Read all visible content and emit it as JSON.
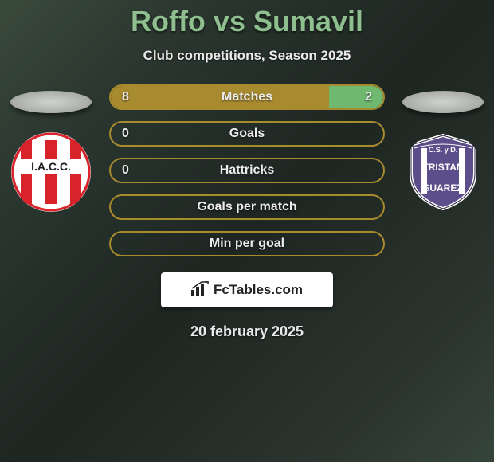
{
  "title": "Roffo vs Sumavil",
  "title_color": "#8fbf8f",
  "subtitle": "Club competitions, Season 2025",
  "text_color": "#eaeaea",
  "background_gradient": [
    "#3a4a3a",
    "#2b3730",
    "#1e2622",
    "#2a332d",
    "#35443a"
  ],
  "date": "20 february 2025",
  "ellipse_color": "#cfd2cd",
  "bar_defaults": {
    "height": 32,
    "border_radius": 16,
    "label_fontsize": 16,
    "value_fontsize": 16
  },
  "bars": [
    {
      "label": "Matches",
      "left_value": "8",
      "right_value": "2",
      "left_pct": 80,
      "right_pct": 20,
      "left_fill": "#a88a2f",
      "right_fill": "#6fb86f",
      "track": "transparent",
      "border": "#a88a2f"
    },
    {
      "label": "Goals",
      "left_value": "0",
      "right_value": "",
      "left_pct": 0,
      "right_pct": 0,
      "left_fill": "#a88a2f",
      "right_fill": "#6fb86f",
      "track": "transparent",
      "border": "#a88a2f"
    },
    {
      "label": "Hattricks",
      "left_value": "0",
      "right_value": "",
      "left_pct": 0,
      "right_pct": 0,
      "left_fill": "#a88a2f",
      "right_fill": "#6fb86f",
      "track": "transparent",
      "border": "#a88a2f"
    },
    {
      "label": "Goals per match",
      "left_value": "",
      "right_value": "",
      "left_pct": 0,
      "right_pct": 0,
      "left_fill": "#a88a2f",
      "right_fill": "#6fb86f",
      "track": "transparent",
      "border": "#a88a2f"
    },
    {
      "label": "Min per goal",
      "left_value": "",
      "right_value": "",
      "left_pct": 0,
      "right_pct": 0,
      "left_fill": "#a88a2f",
      "right_fill": "#6fb86f",
      "track": "transparent",
      "border": "#a88a2f"
    }
  ],
  "badges": {
    "left": {
      "name": "IACC",
      "bg": "#ffffff",
      "stripe": "#d8232a",
      "text": "I.A.C.C."
    },
    "right": {
      "name": "Tristan Suarez",
      "shield_fill": "#5c4e8a",
      "shield_stroke": "#ffffff",
      "stripe": "#ffffff",
      "top_text": "C.S. y D.",
      "mid_text": "TRISTAN",
      "bot_text": "SUAREZ"
    }
  },
  "fctables": {
    "text": "FcTables.com",
    "icon_color": "#222222",
    "bg": "#ffffff"
  }
}
